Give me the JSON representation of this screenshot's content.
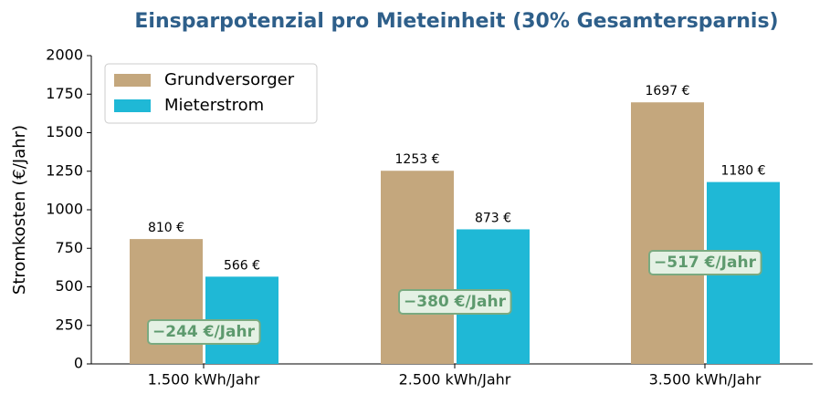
{
  "chart_data": {
    "type": "bar",
    "title": "Einsparpotenzial pro Mieteinheit (30% Gesamtersparnis)",
    "ylabel": "Stromkosten (€/Jahr)",
    "categories": [
      "1.500 kWh/Jahr",
      "2.500 kWh/Jahr",
      "3.500 kWh/Jahr"
    ],
    "series": [
      {
        "name": "Grundversorger",
        "color": "#c4a77d",
        "values": [
          810,
          1253,
          1697
        ],
        "value_labels": [
          "810 €",
          "1253 €",
          "1697 €"
        ]
      },
      {
        "name": "Mieterstrom",
        "color": "#1fb8d6",
        "values": [
          566,
          873,
          1180
        ],
        "value_labels": [
          "566 €",
          "873 €",
          "1180 €"
        ]
      }
    ],
    "annotations": [
      "−244 €/Jahr",
      "−380 €/Jahr",
      "−517 €/Jahr"
    ],
    "ylim": [
      0,
      2000
    ],
    "yticks": [
      0,
      250,
      500,
      750,
      1000,
      1250,
      1500,
      1750,
      2000
    ],
    "legend": "upper left",
    "grid": false
  }
}
